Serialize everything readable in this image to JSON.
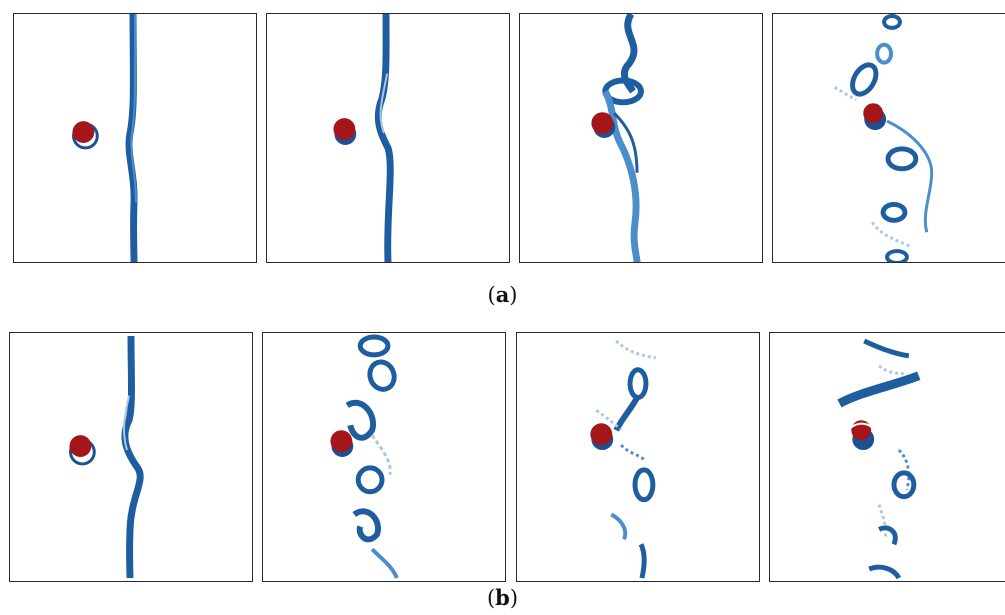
{
  "colors": {
    "vortex_dark": "#1e5d9f",
    "vortex_mid": "#4c8ecb",
    "vortex_light": "#a9c8e6",
    "cylinder_red": "#a4161a",
    "cylinder_blue": "#1d4f91",
    "frame": "#2a2a2a"
  },
  "figure": {
    "caption_a": {
      "open": "(",
      "label": "a",
      "close": ")"
    },
    "caption_b": {
      "open": "(",
      "label": "b",
      "close": ")"
    }
  },
  "rows": [
    {
      "id": "a",
      "panels": [
        {
          "stage": 1,
          "pattern": "straight-filament"
        },
        {
          "stage": 2,
          "pattern": "kinked-filament"
        },
        {
          "stage": 3,
          "pattern": "wavy-filament-with-loop"
        },
        {
          "stage": 4,
          "pattern": "shed-vortices"
        }
      ]
    },
    {
      "id": "b",
      "panels": [
        {
          "stage": 1,
          "pattern": "kinked-filament"
        },
        {
          "stage": 2,
          "pattern": "shed-vortices"
        },
        {
          "stage": 3,
          "pattern": "shed-vortices-dense"
        },
        {
          "stage": 4,
          "pattern": "shed-vortices-with-sheet"
        }
      ]
    }
  ]
}
